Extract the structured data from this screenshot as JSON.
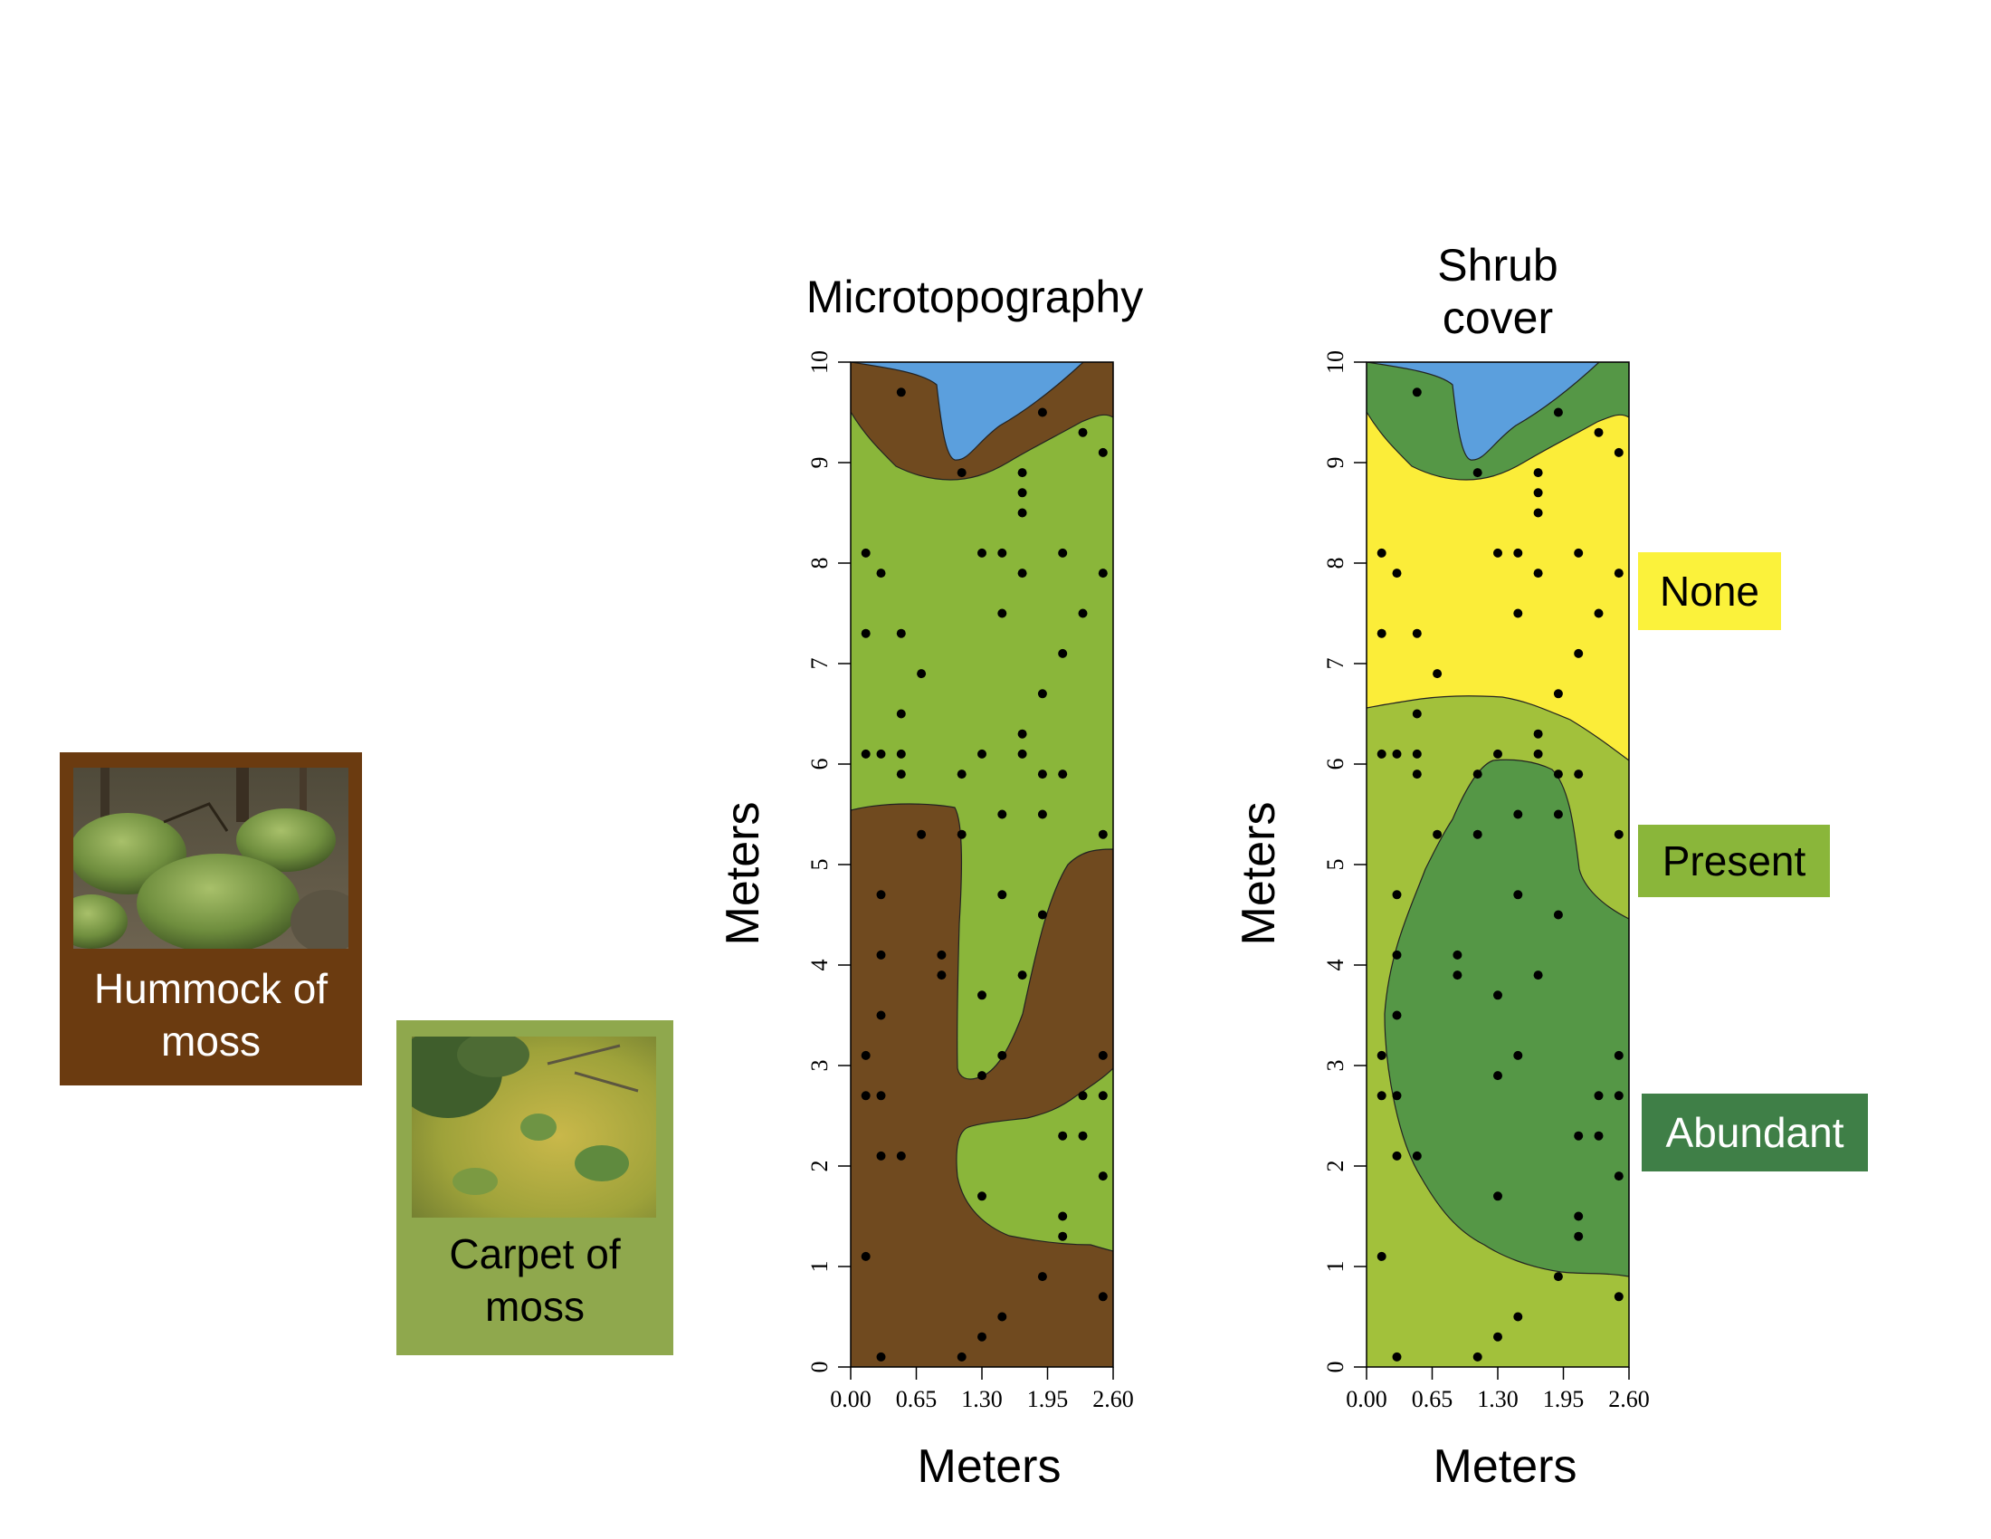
{
  "cards": {
    "hummock": "Hummock of moss",
    "carpet": "Carpet of moss"
  },
  "legend": {
    "none": "None",
    "present": "Present",
    "abundant": "Abundant"
  },
  "colors": {
    "water": "#5b9fdd",
    "hummock": "#704a1f",
    "carpet": "#8ab63a",
    "shrub_none": "#fbed39",
    "shrub_present": "#a2c13b",
    "shrub_abundant": "#559746"
  },
  "chart_data": [
    {
      "type": "scatter",
      "title": "Microtopography",
      "xlabel": "Meters",
      "ylabel": "Meters",
      "xlim": [
        0,
        2.6
      ],
      "ylim": [
        0,
        10
      ],
      "xticks": [
        "0.00",
        "0.65",
        "1.30",
        "1.95",
        "2.60"
      ],
      "yticks": [
        "0",
        "1",
        "2",
        "3",
        "4",
        "5",
        "6",
        "7",
        "8",
        "9",
        "10"
      ],
      "background_zones": [
        "water",
        "hummock",
        "carpet"
      ]
    },
    {
      "type": "scatter",
      "title": "Shrub cover",
      "xlabel": "Meters",
      "ylabel": "Meters",
      "xlim": [
        0,
        2.6
      ],
      "ylim": [
        0,
        10
      ],
      "xticks": [
        "0.00",
        "0.65",
        "1.30",
        "1.95",
        "2.60"
      ],
      "yticks": [
        "0",
        "1",
        "2",
        "3",
        "4",
        "5",
        "6",
        "7",
        "8",
        "9",
        "10"
      ],
      "background_zones": [
        "water",
        "None",
        "Present",
        "Abundant"
      ]
    }
  ],
  "points": [
    [
      0.5,
      9.7
    ],
    [
      1.9,
      9.5
    ],
    [
      2.3,
      9.3
    ],
    [
      2.5,
      9.1
    ],
    [
      1.1,
      8.9
    ],
    [
      1.7,
      8.9
    ],
    [
      1.7,
      8.7
    ],
    [
      1.7,
      8.5
    ],
    [
      0.15,
      8.1
    ],
    [
      1.3,
      8.1
    ],
    [
      1.5,
      8.1
    ],
    [
      2.1,
      8.1
    ],
    [
      0.3,
      7.9
    ],
    [
      1.7,
      7.9
    ],
    [
      2.5,
      7.9
    ],
    [
      1.5,
      7.5
    ],
    [
      2.3,
      7.5
    ],
    [
      0.15,
      7.3
    ],
    [
      0.5,
      7.3
    ],
    [
      2.1,
      7.1
    ],
    [
      0.7,
      6.9
    ],
    [
      1.9,
      6.7
    ],
    [
      0.5,
      6.5
    ],
    [
      1.7,
      6.3
    ],
    [
      0.15,
      6.1
    ],
    [
      0.3,
      6.1
    ],
    [
      0.5,
      6.1
    ],
    [
      1.3,
      6.1
    ],
    [
      1.7,
      6.1
    ],
    [
      0.5,
      5.9
    ],
    [
      1.1,
      5.9
    ],
    [
      1.9,
      5.9
    ],
    [
      2.1,
      5.9
    ],
    [
      1.5,
      5.5
    ],
    [
      1.9,
      5.5
    ],
    [
      0.7,
      5.3
    ],
    [
      1.1,
      5.3
    ],
    [
      2.5,
      5.3
    ],
    [
      0.3,
      4.7
    ],
    [
      1.5,
      4.7
    ],
    [
      1.9,
      4.5
    ],
    [
      0.3,
      4.1
    ],
    [
      0.9,
      4.1
    ],
    [
      0.9,
      3.9
    ],
    [
      1.7,
      3.9
    ],
    [
      1.3,
      3.7
    ],
    [
      0.3,
      3.5
    ],
    [
      0.15,
      3.1
    ],
    [
      1.5,
      3.1
    ],
    [
      2.5,
      3.1
    ],
    [
      1.3,
      2.9
    ],
    [
      0.15,
      2.7
    ],
    [
      0.3,
      2.7
    ],
    [
      2.3,
      2.7
    ],
    [
      2.5,
      2.7
    ],
    [
      2.1,
      2.3
    ],
    [
      2.3,
      2.3
    ],
    [
      0.3,
      2.1
    ],
    [
      0.5,
      2.1
    ],
    [
      2.5,
      1.9
    ],
    [
      1.3,
      1.7
    ],
    [
      2.1,
      1.5
    ],
    [
      2.1,
      1.3
    ],
    [
      0.15,
      1.1
    ],
    [
      1.9,
      0.9
    ],
    [
      2.5,
      0.7
    ],
    [
      1.5,
      0.5
    ],
    [
      1.3,
      0.3
    ],
    [
      0.3,
      0.1
    ],
    [
      1.1,
      0.1
    ]
  ]
}
